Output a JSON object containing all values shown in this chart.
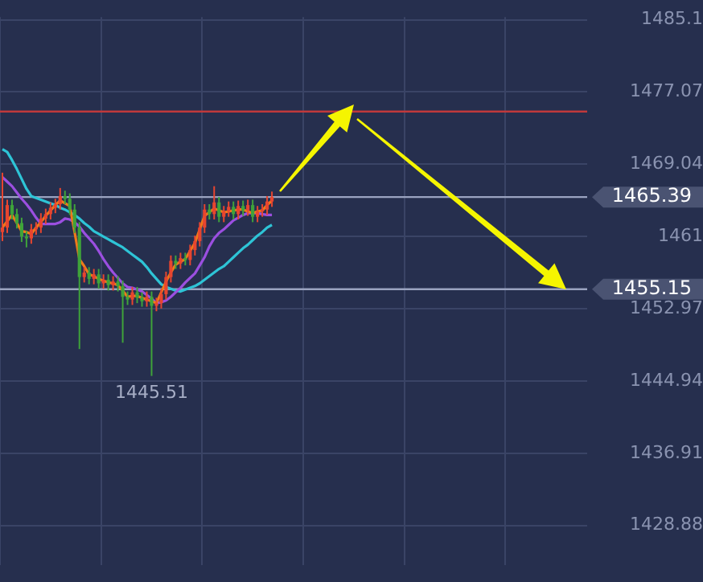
{
  "chart_data": {
    "type": "candlestick",
    "categories": [
      null,
      null,
      null,
      null,
      null,
      null,
      null,
      null,
      null,
      null,
      null,
      null,
      null,
      null,
      null,
      null,
      null,
      null,
      null,
      null,
      null,
      null,
      null,
      null,
      null,
      null,
      null,
      null,
      null,
      null,
      null,
      null,
      null,
      null,
      null,
      null,
      null,
      null,
      null,
      null,
      null,
      null,
      null,
      null,
      null,
      null,
      null,
      null,
      null,
      null,
      null,
      null,
      null,
      null,
      null,
      null,
      null,
      null,
      null,
      null,
      null,
      null,
      null,
      null,
      null,
      null,
      null,
      null,
      null,
      null,
      null,
      null,
      null,
      null,
      null,
      null,
      null,
      null,
      null,
      null,
      null,
      null,
      null,
      null,
      null,
      null,
      null,
      null,
      null,
      null,
      null,
      null,
      null,
      null,
      null,
      null,
      null,
      null,
      null,
      null,
      null,
      null,
      null,
      null,
      null,
      null,
      null,
      null,
      null,
      null,
      null,
      null,
      null,
      null,
      null,
      null,
      null,
      null,
      null,
      null,
      null,
      null
    ],
    "ohlc": [
      [
        1461.5,
        1468.1,
        1460.5,
        1462.0
      ],
      [
        1462.0,
        1465.1,
        1461.4,
        1464.5
      ],
      [
        1464.5,
        1465.1,
        1462.9,
        1463.5
      ],
      [
        1463.5,
        1464.1,
        1461.9,
        1462.5
      ],
      [
        1462.5,
        1463.1,
        1460.4,
        1461.0
      ],
      [
        1461.0,
        1461.6,
        1459.8,
        1460.8
      ],
      [
        1460.8,
        1462.4,
        1460.2,
        1461.8
      ],
      [
        1461.8,
        1462.6,
        1461.2,
        1462.0
      ],
      [
        1462.0,
        1463.6,
        1461.4,
        1463.0
      ],
      [
        1463.0,
        1464.1,
        1462.4,
        1463.5
      ],
      [
        1463.5,
        1464.8,
        1462.9,
        1464.2
      ],
      [
        1464.2,
        1465.2,
        1463.6,
        1464.6
      ],
      [
        1464.6,
        1466.4,
        1464.0,
        1465.5
      ],
      [
        1465.5,
        1466.1,
        1464.6,
        1465.2
      ],
      [
        1465.2,
        1465.8,
        1463.4,
        1464.0
      ],
      [
        1464.0,
        1464.6,
        1461.4,
        1462.0
      ],
      [
        1462.0,
        1462.6,
        1448.5,
        1456.5
      ],
      [
        1456.5,
        1457.6,
        1455.9,
        1457.0
      ],
      [
        1457.0,
        1457.6,
        1455.7,
        1456.3
      ],
      [
        1456.3,
        1457.4,
        1455.7,
        1456.8
      ],
      [
        1456.8,
        1457.4,
        1455.2,
        1455.8
      ],
      [
        1455.8,
        1456.8,
        1455.2,
        1456.2
      ],
      [
        1456.2,
        1456.8,
        1455.0,
        1455.6
      ],
      [
        1455.6,
        1456.6,
        1455.0,
        1456.0
      ],
      [
        1456.0,
        1456.6,
        1454.9,
        1455.5
      ],
      [
        1455.5,
        1456.1,
        1449.2,
        1454.3
      ],
      [
        1454.3,
        1454.9,
        1453.4,
        1454.0
      ],
      [
        1454.0,
        1455.4,
        1453.4,
        1454.8
      ],
      [
        1454.8,
        1455.4,
        1453.6,
        1454.2
      ],
      [
        1454.2,
        1454.8,
        1453.2,
        1453.8
      ],
      [
        1453.8,
        1454.9,
        1453.2,
        1454.3
      ],
      [
        1454.3,
        1454.9,
        1445.51,
        1453.3
      ],
      [
        1453.3,
        1454.2,
        1452.7,
        1453.6
      ],
      [
        1453.6,
        1455.2,
        1453.0,
        1454.6
      ],
      [
        1454.6,
        1457.1,
        1454.0,
        1456.5
      ],
      [
        1456.5,
        1458.9,
        1455.9,
        1458.3
      ],
      [
        1458.3,
        1458.9,
        1457.4,
        1458.0
      ],
      [
        1458.0,
        1459.2,
        1457.4,
        1458.6
      ],
      [
        1458.6,
        1459.2,
        1457.8,
        1458.4
      ],
      [
        1458.4,
        1460.1,
        1457.8,
        1459.5
      ],
      [
        1459.5,
        1461.1,
        1458.9,
        1460.5
      ],
      [
        1460.5,
        1462.6,
        1459.9,
        1462.0
      ],
      [
        1462.0,
        1464.6,
        1461.4,
        1464.0
      ],
      [
        1464.0,
        1464.6,
        1462.9,
        1463.5
      ],
      [
        1463.5,
        1466.6,
        1462.9,
        1464.8
      ],
      [
        1464.8,
        1465.4,
        1462.6,
        1463.2
      ],
      [
        1463.2,
        1464.4,
        1462.6,
        1463.8
      ],
      [
        1463.8,
        1464.9,
        1463.2,
        1464.3
      ],
      [
        1464.3,
        1464.9,
        1462.9,
        1463.5
      ],
      [
        1463.5,
        1465.0,
        1462.9,
        1464.4
      ],
      [
        1464.4,
        1465.0,
        1463.3,
        1463.9
      ],
      [
        1463.9,
        1465.1,
        1463.3,
        1464.5
      ],
      [
        1464.5,
        1465.1,
        1462.6,
        1463.2
      ],
      [
        1463.2,
        1464.4,
        1462.6,
        1463.8
      ],
      [
        1463.8,
        1464.6,
        1463.2,
        1464.0
      ],
      [
        1464.0,
        1465.5,
        1463.4,
        1464.9
      ],
      [
        1464.9,
        1466.0,
        1464.3,
        1465.39
      ],
      null,
      null,
      null,
      null,
      null,
      null,
      null,
      null,
      null,
      null,
      null,
      null,
      null,
      null,
      null,
      null,
      null,
      null,
      null,
      null,
      null,
      null,
      null,
      null,
      null,
      null,
      null,
      null,
      null,
      null,
      null,
      null,
      null,
      null,
      null,
      null,
      null,
      null,
      null,
      null,
      null,
      null,
      null,
      null,
      null,
      null,
      null,
      null,
      null,
      null,
      null,
      null,
      null,
      null,
      null,
      null,
      null,
      null,
      null,
      null,
      null,
      null,
      null,
      null,
      null
    ],
    "colors": [
      "#e8452f",
      "#e8452f",
      "#3fa33a",
      "#3fa33a",
      "#3fa33a",
      "#3fa33a",
      "#e8452f",
      "#e8452f",
      "#e8452f",
      "#e8452f",
      "#e8452f",
      "#e8452f",
      "#e8452f",
      "#3fa33a",
      "#3fa33a",
      "#3fa33a",
      "#3fa33a",
      "#e8452f",
      "#3fa33a",
      "#e8452f",
      "#3fa33a",
      "#e8452f",
      "#3fa33a",
      "#e8452f",
      "#3fa33a",
      "#3fa33a",
      "#3fa33a",
      "#e8452f",
      "#3fa33a",
      "#3fa33a",
      "#e8452f",
      "#3fa33a",
      "#e8452f",
      "#e8452f",
      "#e8452f",
      "#e8452f",
      "#3fa33a",
      "#e8452f",
      "#3fa33a",
      "#e8452f",
      "#e8452f",
      "#e8452f",
      "#e8452f",
      "#3fa33a",
      "#e8452f",
      "#3fa33a",
      "#e8452f",
      "#e8452f",
      "#3fa33a",
      "#e8452f",
      "#3fa33a",
      "#e8452f",
      "#3fa33a",
      "#e8452f",
      "#e8452f",
      "#e8452f",
      "#e8452f",
      null,
      null,
      null,
      null,
      null,
      null,
      null,
      null,
      null,
      null,
      null,
      null,
      null,
      null,
      null,
      null,
      null,
      null,
      null,
      null,
      null,
      null,
      null,
      null,
      null,
      null,
      null,
      null,
      null,
      null,
      null,
      null,
      null,
      null,
      null,
      null,
      null,
      null,
      null,
      null,
      null,
      null,
      null,
      null,
      null,
      null,
      null,
      null,
      null,
      null,
      null,
      null,
      null,
      null,
      null,
      null,
      null,
      null,
      null,
      null,
      null,
      null,
      null,
      null,
      null
    ],
    "series": [
      {
        "type": "line",
        "color": "#f07a1a",
        "values": [
          1462.0,
          1462.7,
          1463.4,
          1462.5,
          1461.6,
          1461.5,
          1461.3,
          1462.0,
          1462.6,
          1463.3,
          1463.9,
          1464.5,
          1465.0,
          1464.7,
          1464.4,
          1461.5,
          1458.5,
          1457.7,
          1456.8,
          1456.6,
          1456.3,
          1456.1,
          1455.9,
          1455.8,
          1455.6,
          1455.0,
          1454.3,
          1454.4,
          1454.4,
          1454.2,
          1454.0,
          1453.8,
          1453.6,
          1454.8,
          1456.0,
          1457.0,
          1457.9,
          1458.2,
          1458.5,
          1459.4,
          1460.3,
          1461.8,
          1463.3,
          1463.7,
          1464.1,
          1463.9,
          1463.7,
          1463.8,
          1463.9,
          1464.0,
          1464.0,
          1463.8,
          1463.6,
          1463.8,
          1463.9,
          1464.5,
          1465.0,
          null,
          null,
          null,
          null,
          null,
          null,
          null,
          null,
          null,
          null,
          null,
          null,
          null,
          null,
          null,
          null,
          null,
          null,
          null,
          null,
          null,
          null,
          null,
          null,
          null,
          null,
          null,
          null,
          null,
          null,
          null,
          null,
          null,
          null,
          null,
          null,
          null,
          null,
          null,
          null,
          null,
          null,
          null,
          null,
          null,
          null,
          null,
          null,
          null,
          null,
          null,
          null,
          null,
          null,
          null,
          null,
          null,
          null,
          null,
          null,
          null,
          null,
          null,
          null,
          null
        ]
      },
      {
        "type": "line",
        "color": "#9b4fe0",
        "values": [
          1467.6,
          1467.1,
          1466.6,
          1465.9,
          1465.2,
          1464.6,
          1463.9,
          1463.1,
          1462.4,
          1462.4,
          1462.4,
          1462.4,
          1462.6,
          1463.0,
          1462.9,
          1462.6,
          1462.1,
          1461.4,
          1460.8,
          1460.2,
          1459.4,
          1458.5,
          1457.7,
          1457.0,
          1456.4,
          1455.8,
          1455.4,
          1455.3,
          1455.1,
          1454.9,
          1454.5,
          1454.1,
          1453.6,
          1453.7,
          1453.9,
          1454.3,
          1454.8,
          1455.3,
          1455.9,
          1456.4,
          1456.9,
          1457.8,
          1458.7,
          1459.9,
          1460.8,
          1461.4,
          1461.8,
          1462.3,
          1462.8,
          1463.1,
          1463.4,
          1463.6,
          1463.6,
          1463.6,
          1463.5,
          1463.4,
          1463.4,
          null,
          null,
          null,
          null,
          null,
          null,
          null,
          null,
          null,
          null,
          null,
          null,
          null,
          null,
          null,
          null,
          null,
          null,
          null,
          null,
          null,
          null,
          null,
          null,
          null,
          null,
          null,
          null,
          null,
          null,
          null,
          null,
          null,
          null,
          null,
          null,
          null,
          null,
          null,
          null,
          null,
          null,
          null,
          null,
          null,
          null,
          null,
          null,
          null,
          null,
          null,
          null,
          null,
          null,
          null,
          null,
          null,
          null,
          null,
          null,
          null,
          null,
          null,
          null,
          null
        ]
      },
      {
        "type": "line",
        "color": "#2ec4d6",
        "values": [
          1470.7,
          1470.4,
          1469.5,
          1468.5,
          1467.4,
          1466.3,
          1465.5,
          1465.3,
          1465.1,
          1464.9,
          1464.7,
          1464.5,
          1464.2,
          1464.0,
          1463.7,
          1463.4,
          1463.0,
          1462.5,
          1462.1,
          1461.6,
          1461.3,
          1461.0,
          1460.7,
          1460.4,
          1460.1,
          1459.8,
          1459.4,
          1459.0,
          1458.6,
          1458.2,
          1457.6,
          1456.9,
          1456.3,
          1455.7,
          1455.4,
          1455.2,
          1455.0,
          1454.9,
          1455.1,
          1455.3,
          1455.5,
          1455.8,
          1456.2,
          1456.6,
          1457.0,
          1457.4,
          1457.7,
          1458.2,
          1458.7,
          1459.2,
          1459.7,
          1460.1,
          1460.6,
          1461.1,
          1461.5,
          1462.0,
          1462.3,
          null,
          null,
          null,
          null,
          null,
          null,
          null,
          null,
          null,
          null,
          null,
          null,
          null,
          null,
          null,
          null,
          null,
          null,
          null,
          null,
          null,
          null,
          null,
          null,
          null,
          null,
          null,
          null,
          null,
          null,
          null,
          null,
          null,
          null,
          null,
          null,
          null,
          null,
          null,
          null,
          null,
          null,
          null,
          null,
          null,
          null,
          null,
          null,
          null,
          null,
          null,
          null,
          null,
          null,
          null,
          null,
          null,
          null,
          null,
          null,
          null,
          null,
          null,
          null,
          null
        ]
      }
    ],
    "ylim": [
      1424.5,
      1485.4
    ],
    "yticks": [
      1428.88,
      1436.91,
      1444.94,
      1452.97,
      1461,
      1469.04,
      1477.07,
      1485.1
    ],
    "ref_lines": [
      {
        "axis": "y",
        "value": 1474.9,
        "color": "#c0393b"
      },
      {
        "axis": "y",
        "value": 1465.39,
        "label": "1465.39",
        "color": "#9aa3c0"
      },
      {
        "axis": "y",
        "value": 1455.15,
        "label": "1455.15",
        "color": "#9aa3c0"
      }
    ],
    "annotations": [
      {
        "text": "1445.51",
        "y": 1445.51
      }
    ],
    "grid": true,
    "legend": false,
    "tick_labels": "y",
    "marker": "none"
  }
}
